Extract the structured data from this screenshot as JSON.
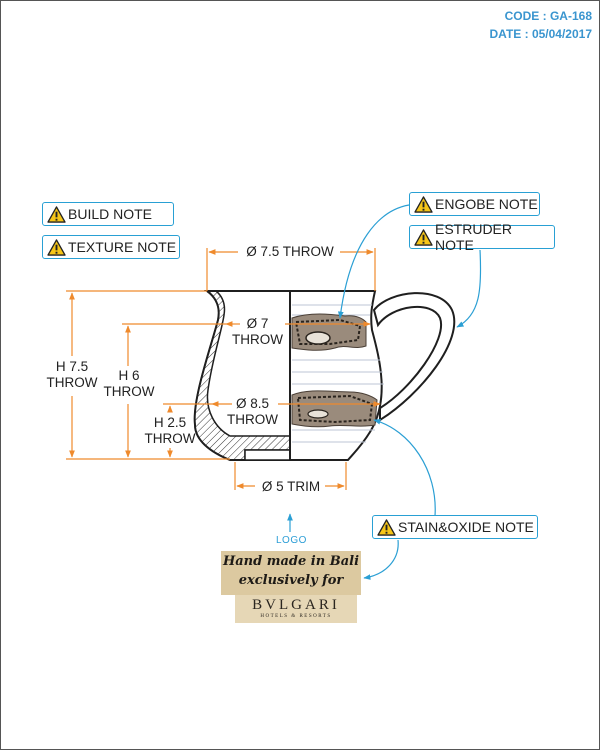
{
  "header": {
    "code": "CODE : GA-168",
    "date": "DATE : 05/04/2017"
  },
  "notes": {
    "build": "BUILD NOTE",
    "texture": "TEXTURE NOTE",
    "engobe": "ENGOBE NOTE",
    "estruder": "ESTRUDER NOTE",
    "stain_oxide": "STAIN&OXIDE NOTE"
  },
  "dimensions": {
    "top_diameter": "Ø 7.5 THROW",
    "inner_diameter_value": "Ø 7",
    "inner_diameter_unit": "THROW",
    "belly_diameter_value": "Ø 8.5",
    "belly_diameter_unit": "THROW",
    "base_diameter": "Ø 5 TRIM",
    "height_total_value": "H 7.5",
    "height_total_unit": "THROW",
    "height_mid_value": "H 6",
    "height_mid_unit": "THROW",
    "height_low_value": "H 2.5",
    "height_low_unit": "THROW"
  },
  "logo": {
    "label": "LOGO",
    "line1": "Hand made in Bali",
    "line2": "exclusively for",
    "brand": "BVLGARI",
    "brand_sub": "HOTELS & RESORTS"
  },
  "colors": {
    "dimension": "#ef8a2c",
    "callout": "#2b9fd4",
    "outline": "#1f1f1f",
    "tag_paper": "#dcc9a0"
  },
  "icons": {
    "warning": "warning-triangle-icon",
    "arrow": "arrow-up-icon"
  }
}
